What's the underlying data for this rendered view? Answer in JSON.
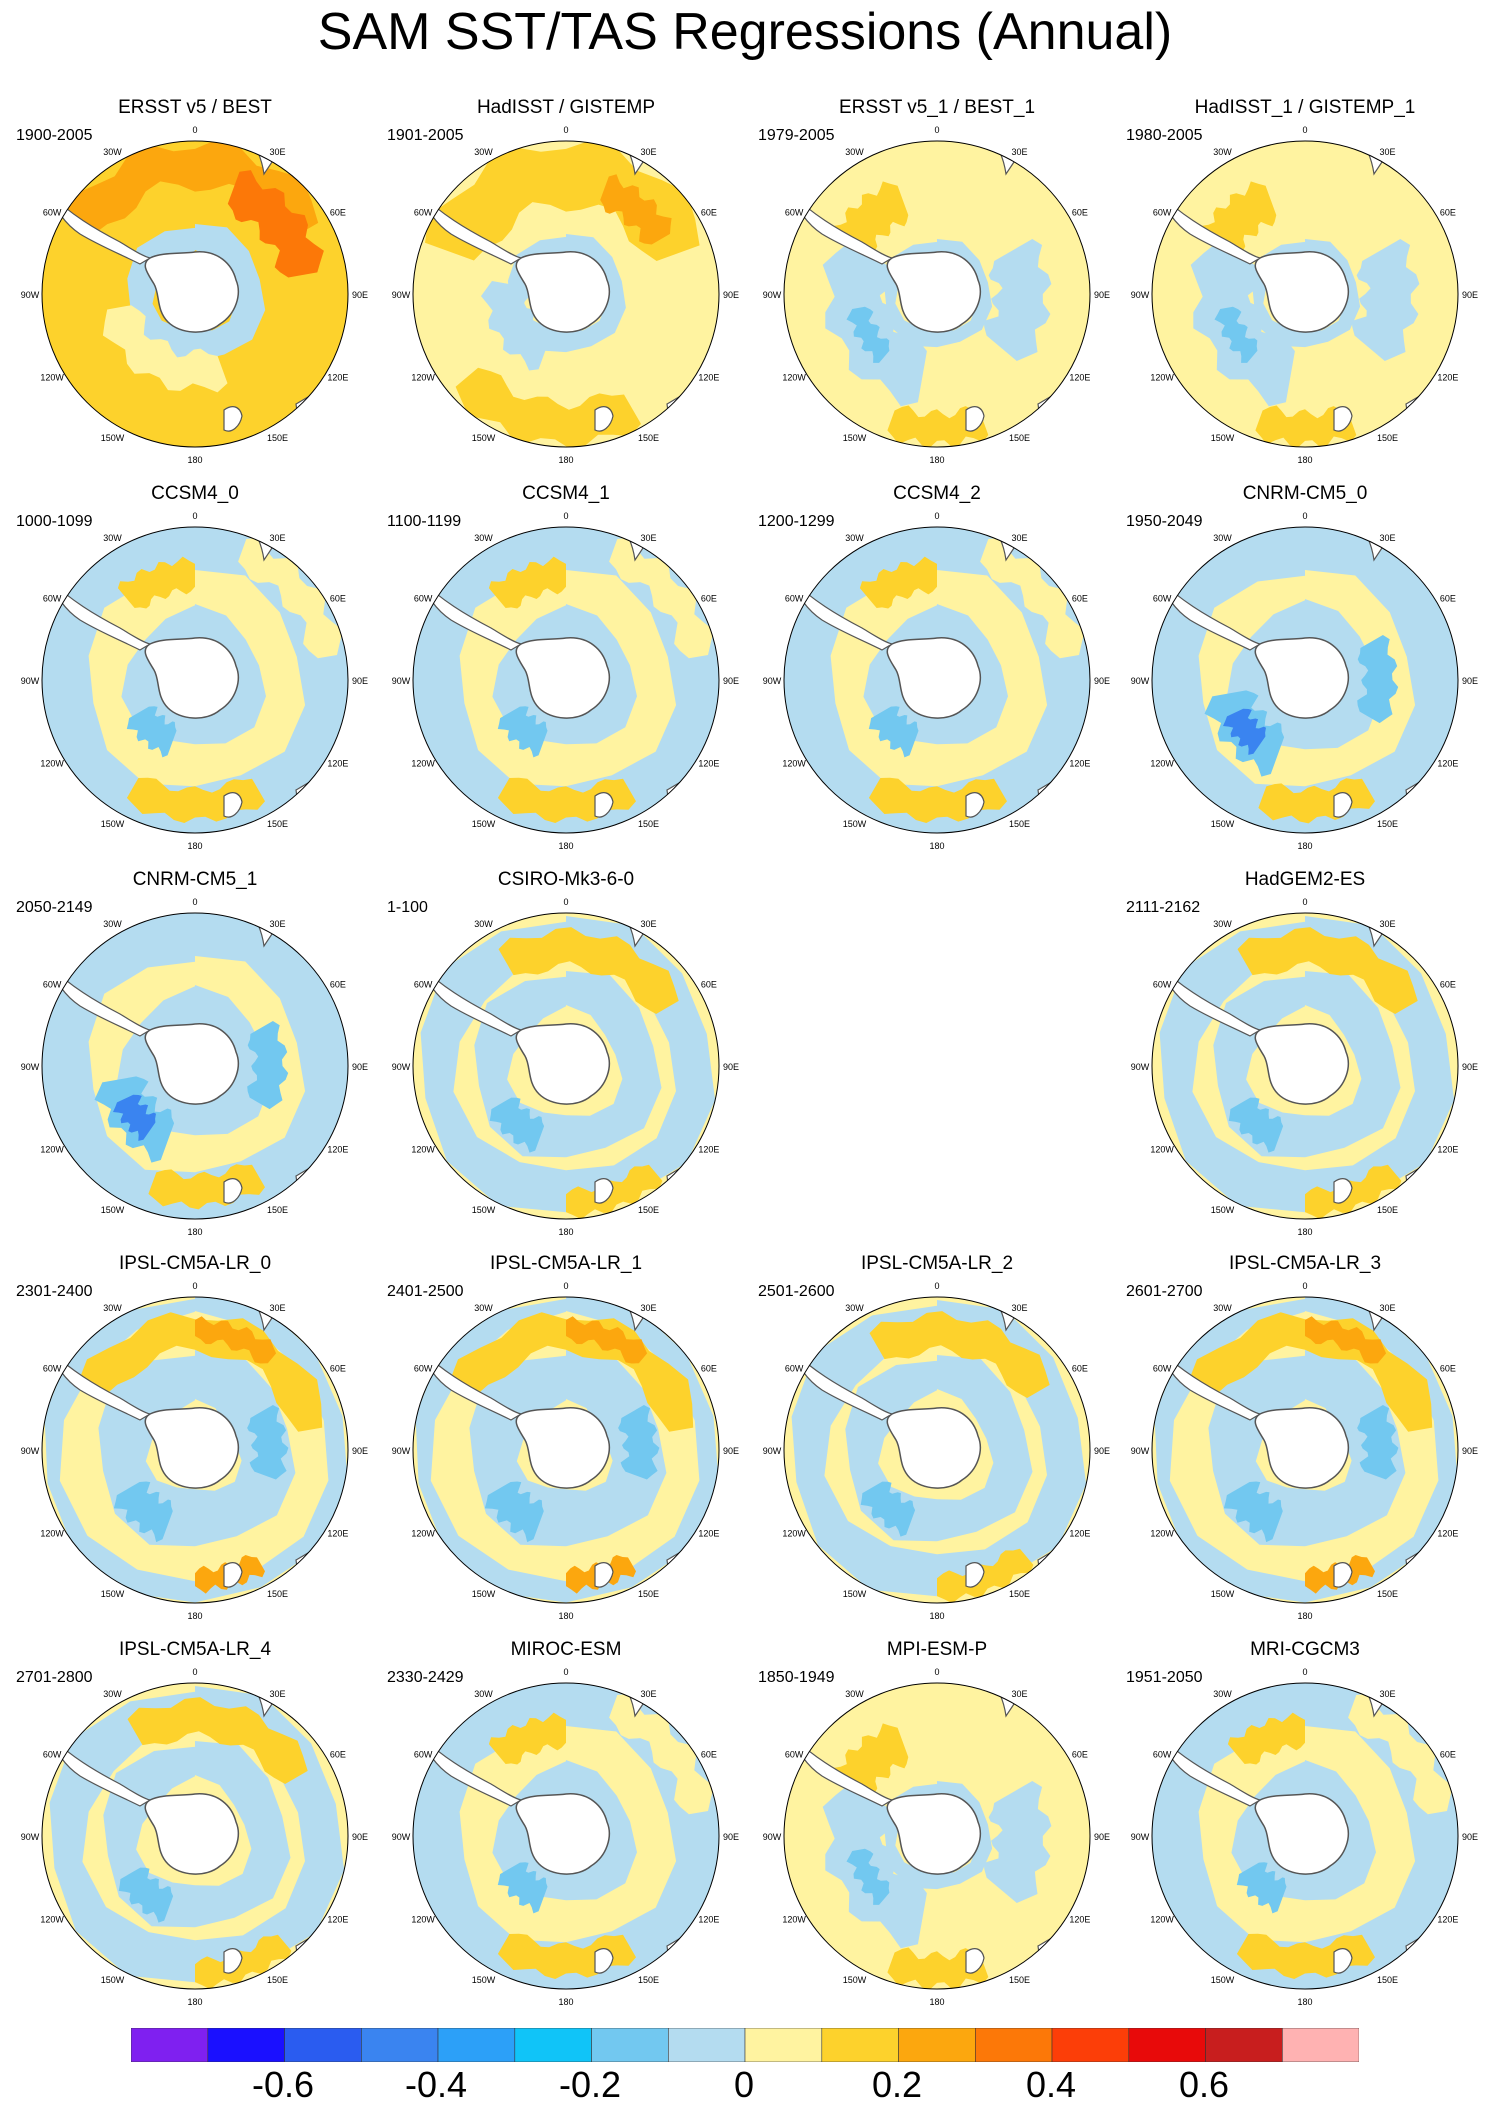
{
  "figure": {
    "title": "SAM SST/TAS Regressions (Annual)",
    "colors": {
      "ocean_negative_light": "#b4dcf0",
      "ocean_positive_light": "#fff3a0",
      "coast": "#555555",
      "land": "#ffffff"
    }
  },
  "lon_labels": [
    "0",
    "30E",
    "60E",
    "90E",
    "120E",
    "150E",
    "180",
    "150W",
    "120W",
    "90W",
    "60W",
    "30W"
  ],
  "panels": [
    {
      "title": "ERSST v5 / BEST",
      "years": "1900-2005",
      "pattern": "warm-strong"
    },
    {
      "title": "HadISST / GISTEMP",
      "years": "1901-2005",
      "pattern": "warm"
    },
    {
      "title": "ERSST v5_1 / BEST_1",
      "years": "1979-2005",
      "pattern": "mixed"
    },
    {
      "title": "HadISST_1 / GISTEMP_1",
      "years": "1980-2005",
      "pattern": "mixed"
    },
    {
      "title": "CCSM4_0",
      "years": "1000-1099",
      "pattern": "cool"
    },
    {
      "title": "CCSM4_1",
      "years": "1100-1199",
      "pattern": "cool"
    },
    {
      "title": "CCSM4_2",
      "years": "1200-1299",
      "pattern": "cool"
    },
    {
      "title": "CNRM-CM5_0",
      "years": "1950-2049",
      "pattern": "cool-deep"
    },
    {
      "title": "CNRM-CM5_1",
      "years": "2050-2149",
      "pattern": "cool-deep"
    },
    {
      "title": "CSIRO-Mk3-6-0",
      "years": "1-100",
      "pattern": "ring"
    },
    {
      "title": "HadGEM2-ES",
      "years": "2111-2162",
      "pattern": "ring"
    },
    {
      "title": "IPSL-CM5A-LR_0",
      "years": "2301-2400",
      "pattern": "ring-strong"
    },
    {
      "title": "IPSL-CM5A-LR_1",
      "years": "2401-2500",
      "pattern": "ring-strong"
    },
    {
      "title": "IPSL-CM5A-LR_2",
      "years": "2501-2600",
      "pattern": "ring"
    },
    {
      "title": "IPSL-CM5A-LR_3",
      "years": "2601-2700",
      "pattern": "ring-strong"
    },
    {
      "title": "IPSL-CM5A-LR_4",
      "years": "2701-2800",
      "pattern": "ring"
    },
    {
      "title": "MIROC-ESM",
      "years": "2330-2429",
      "pattern": "cool"
    },
    {
      "title": "MPI-ESM-P",
      "years": "1850-1949",
      "pattern": "mixed"
    },
    {
      "title": "MRI-CGCM3",
      "years": "1951-2050",
      "pattern": "cool"
    }
  ],
  "colorbar": {
    "colors": [
      "#7f20f0",
      "#1a10ff",
      "#2a5cf0",
      "#3a84f0",
      "#2ca0f8",
      "#10c4f8",
      "#72c8f0",
      "#b4dcf0",
      "#fff3a0",
      "#fdd22c",
      "#fca70e",
      "#fc7808",
      "#fc3e08",
      "#e80a0a",
      "#c81e1e",
      "#ffb2b2"
    ],
    "labels": [
      "-0.6",
      "-0.4",
      "-0.2",
      "0",
      "0.2",
      "0.4",
      "0.6"
    ]
  }
}
